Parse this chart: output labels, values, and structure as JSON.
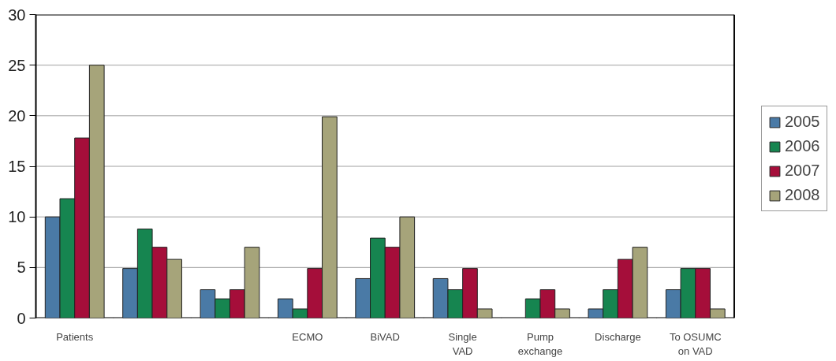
{
  "chart_data": {
    "type": "bar",
    "categories": [
      "Patients",
      null,
      null,
      "ECMO",
      "BiVAD",
      "Single\nVAD",
      "Pump\nexchange",
      "Discharge",
      "To OSUMC\non VAD"
    ],
    "series": [
      {
        "name": "2005",
        "color": "#4a7aa6",
        "values": [
          10,
          4.9,
          2.8,
          1.9,
          3.9,
          3.9,
          0,
          0.9,
          2.8
        ]
      },
      {
        "name": "2006",
        "color": "#168550",
        "values": [
          11.8,
          8.8,
          1.9,
          0.9,
          7.9,
          2.8,
          1.9,
          2.8,
          4.9
        ]
      },
      {
        "name": "2007",
        "color": "#a50e3a",
        "values": [
          17.8,
          7,
          2.8,
          4.9,
          7,
          4.9,
          2.8,
          5.8,
          4.9
        ]
      },
      {
        "name": "2008",
        "color": "#a6a47a",
        "values": [
          25,
          5.8,
          7,
          19.9,
          10,
          0.9,
          0.9,
          7,
          0.9
        ]
      }
    ],
    "ylim": [
      0,
      30
    ],
    "yticks": [
      0,
      5,
      10,
      15,
      20,
      25,
      30
    ],
    "grid": "y",
    "legend": "right"
  }
}
